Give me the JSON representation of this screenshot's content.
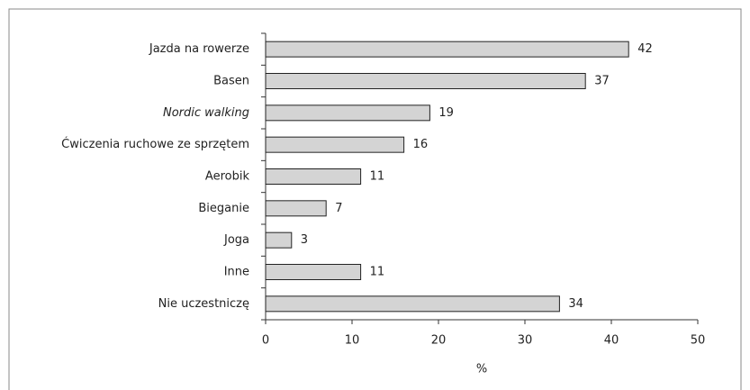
{
  "chart_data": {
    "type": "barh",
    "categories": [
      "Jazda na rowerze",
      "Basen",
      "Nordic walking",
      "Ćwiczenia ruchowe ze sprzętem",
      "Aerobik",
      "Bieganie",
      "Joga",
      "Inne",
      "Nie uczestniczę"
    ],
    "values": [
      42,
      37,
      19,
      16,
      11,
      7,
      3,
      11,
      34
    ],
    "italic_categories": [
      2
    ],
    "color": "#d4d4d4",
    "xlim": [
      0,
      50
    ],
    "xticks": [
      0,
      10,
      20,
      30,
      40,
      50
    ],
    "xlabel": "%"
  }
}
